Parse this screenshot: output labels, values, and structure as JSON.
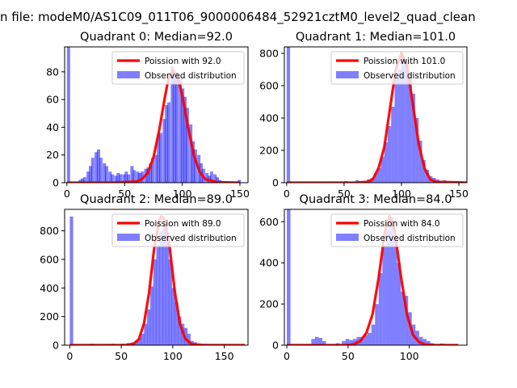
{
  "figure": {
    "suptitle": "n file: modeM0/AS1C09_011T06_9000006484_52921cztM0_level2_quad_clean"
  },
  "chart_data": [
    {
      "type": "bar",
      "title": "Quadrant 0: Median=92.0",
      "xlim": [
        -2,
        157
      ],
      "ylim": [
        0,
        98
      ],
      "xticks": [
        0,
        50,
        100,
        150
      ],
      "yticks": [
        0,
        20,
        40,
        60,
        80
      ],
      "legend": {
        "position": "top-right",
        "line_label": "Poission with 92.0",
        "bar_label": "Observed distribution"
      },
      "histogram": {
        "bin_width": 2.8,
        "bins": [
          [
            0,
            98
          ],
          [
            10,
            2
          ],
          [
            12,
            3
          ],
          [
            14,
            4
          ],
          [
            17,
            8
          ],
          [
            19,
            12
          ],
          [
            21,
            18
          ],
          [
            24,
            22
          ],
          [
            26,
            24
          ],
          [
            28,
            18
          ],
          [
            31,
            14
          ],
          [
            33,
            12
          ],
          [
            36,
            8
          ],
          [
            38,
            6
          ],
          [
            41,
            5
          ],
          [
            43,
            7
          ],
          [
            45,
            6
          ],
          [
            48,
            6
          ],
          [
            50,
            8
          ],
          [
            52,
            6
          ],
          [
            55,
            12
          ],
          [
            57,
            9
          ],
          [
            60,
            8
          ],
          [
            62,
            7
          ],
          [
            64,
            8
          ],
          [
            67,
            10
          ],
          [
            69,
            11
          ],
          [
            71,
            14
          ],
          [
            73,
            18
          ],
          [
            76,
            20
          ],
          [
            78,
            35
          ],
          [
            80,
            36
          ],
          [
            83,
            46
          ],
          [
            85,
            56
          ],
          [
            87,
            58
          ],
          [
            90,
            84
          ],
          [
            92,
            78
          ],
          [
            94,
            80
          ],
          [
            97,
            77
          ],
          [
            99,
            68
          ],
          [
            101,
            62
          ],
          [
            103,
            54
          ],
          [
            106,
            42
          ],
          [
            108,
            30
          ],
          [
            110,
            24
          ],
          [
            113,
            20
          ],
          [
            115,
            14
          ],
          [
            117,
            10
          ],
          [
            120,
            7
          ],
          [
            122,
            5
          ],
          [
            124,
            8
          ],
          [
            127,
            6
          ],
          [
            129,
            4
          ],
          [
            131,
            2
          ],
          [
            148,
            2
          ]
        ]
      },
      "poisson": {
        "mean": 92.0,
        "x": [
          0,
          40,
          60,
          65,
          70,
          75,
          80,
          85,
          88,
          92,
          96,
          100,
          105,
          110,
          115,
          120,
          130,
          150
        ],
        "y": [
          0,
          0,
          0.8,
          2.5,
          7,
          18,
          38,
          62,
          75,
          81,
          76,
          63,
          40,
          20,
          8,
          2.5,
          0.4,
          0
        ]
      }
    },
    {
      "type": "bar",
      "title": "Quadrant 1: Median=101.0",
      "xlim": [
        -2,
        157
      ],
      "ylim": [
        0,
        840
      ],
      "xticks": [
        0,
        50,
        100,
        150
      ],
      "yticks": [
        0,
        200,
        400,
        600,
        800
      ],
      "legend": {
        "position": "top-right",
        "line_label": "Poission with 101.0",
        "bar_label": "Observed distribution"
      },
      "histogram": {
        "bin_width": 3,
        "bins": [
          [
            0,
            840
          ],
          [
            40,
            5
          ],
          [
            50,
            10
          ],
          [
            60,
            15
          ],
          [
            70,
            20
          ],
          [
            73,
            30
          ],
          [
            76,
            60
          ],
          [
            79,
            90
          ],
          [
            82,
            160
          ],
          [
            85,
            250
          ],
          [
            88,
            350
          ],
          [
            91,
            470
          ],
          [
            94,
            650
          ],
          [
            97,
            700
          ],
          [
            100,
            780
          ],
          [
            103,
            750
          ],
          [
            106,
            680
          ],
          [
            109,
            550
          ],
          [
            112,
            400
          ],
          [
            115,
            260
          ],
          [
            118,
            140
          ],
          [
            121,
            80
          ],
          [
            124,
            40
          ],
          [
            127,
            30
          ],
          [
            130,
            20
          ],
          [
            136,
            15
          ],
          [
            145,
            10
          ],
          [
            150,
            8
          ]
        ]
      },
      "poisson": {
        "mean": 101.0,
        "x": [
          0,
          60,
          70,
          75,
          80,
          85,
          90,
          95,
          100,
          105,
          110,
          115,
          120,
          125,
          130,
          160
        ],
        "y": [
          0,
          0,
          5,
          20,
          90,
          220,
          460,
          700,
          800,
          720,
          480,
          240,
          90,
          20,
          5,
          0
        ]
      }
    },
    {
      "type": "bar",
      "title": "Quadrant 2: Median=89.0",
      "xlim": [
        -5,
        173
      ],
      "ylim": [
        0,
        950
      ],
      "xticks": [
        0,
        50,
        100,
        150
      ],
      "yticks": [
        0,
        200,
        400,
        600,
        800
      ],
      "legend": {
        "position": "top-right",
        "line_label": "Poission with 89.0",
        "bar_label": "Observed distribution"
      },
      "histogram": {
        "bin_width": 3.3,
        "bins": [
          [
            0,
            900
          ],
          [
            20,
            10
          ],
          [
            40,
            10
          ],
          [
            50,
            10
          ],
          [
            55,
            15
          ],
          [
            60,
            20
          ],
          [
            63,
            30
          ],
          [
            66,
            50
          ],
          [
            69,
            80
          ],
          [
            72,
            150
          ],
          [
            75,
            250
          ],
          [
            78,
            410
          ],
          [
            81,
            600
          ],
          [
            84,
            700
          ],
          [
            87,
            800
          ],
          [
            90,
            850
          ],
          [
            93,
            790
          ],
          [
            96,
            600
          ],
          [
            99,
            400
          ],
          [
            102,
            300
          ],
          [
            105,
            200
          ],
          [
            108,
            150
          ],
          [
            111,
            120
          ],
          [
            114,
            80
          ],
          [
            117,
            30
          ],
          [
            120,
            20
          ],
          [
            123,
            10
          ],
          [
            130,
            10
          ],
          [
            140,
            8
          ]
        ]
      },
      "poisson": {
        "mean": 89.0,
        "x": [
          0,
          55,
          62,
          67,
          72,
          77,
          82,
          87,
          89,
          92,
          97,
          102,
          107,
          112,
          118,
          130,
          170
        ],
        "y": [
          0,
          0,
          10,
          40,
          150,
          370,
          680,
          880,
          900,
          880,
          680,
          370,
          150,
          45,
          8,
          0,
          0
        ]
      }
    },
    {
      "type": "bar",
      "title": "Quadrant 3: Median=84.0",
      "xlim": [
        -2,
        147
      ],
      "ylim": [
        0,
        660
      ],
      "xticks": [
        0,
        50,
        100
      ],
      "yticks": [
        0,
        200,
        400,
        600
      ],
      "legend": {
        "position": "top-right",
        "line_label": "Poission with 84.0",
        "bar_label": "Observed distribution"
      },
      "histogram": {
        "bin_width": 3,
        "bins": [
          [
            0,
            660
          ],
          [
            20,
            30
          ],
          [
            23,
            40
          ],
          [
            26,
            35
          ],
          [
            29,
            20
          ],
          [
            40,
            10
          ],
          [
            45,
            20
          ],
          [
            48,
            30
          ],
          [
            51,
            25
          ],
          [
            54,
            30
          ],
          [
            57,
            40
          ],
          [
            60,
            40
          ],
          [
            63,
            50
          ],
          [
            66,
            60
          ],
          [
            69,
            100
          ],
          [
            72,
            200
          ],
          [
            75,
            350
          ],
          [
            78,
            480
          ],
          [
            81,
            560
          ],
          [
            84,
            620
          ],
          [
            87,
            530
          ],
          [
            90,
            400
          ],
          [
            93,
            260
          ],
          [
            96,
            240
          ],
          [
            99,
            160
          ],
          [
            102,
            100
          ],
          [
            105,
            70
          ],
          [
            108,
            40
          ],
          [
            111,
            30
          ],
          [
            114,
            20
          ],
          [
            117,
            10
          ],
          [
            125,
            8
          ]
        ]
      },
      "poisson": {
        "mean": 84.0,
        "x": [
          0,
          50,
          55,
          60,
          65,
          70,
          75,
          80,
          84,
          88,
          93,
          98,
          103,
          108,
          113,
          120,
          140
        ],
        "y": [
          0,
          0,
          5,
          20,
          60,
          150,
          330,
          550,
          625,
          560,
          340,
          150,
          50,
          15,
          3,
          0,
          0
        ]
      }
    }
  ]
}
